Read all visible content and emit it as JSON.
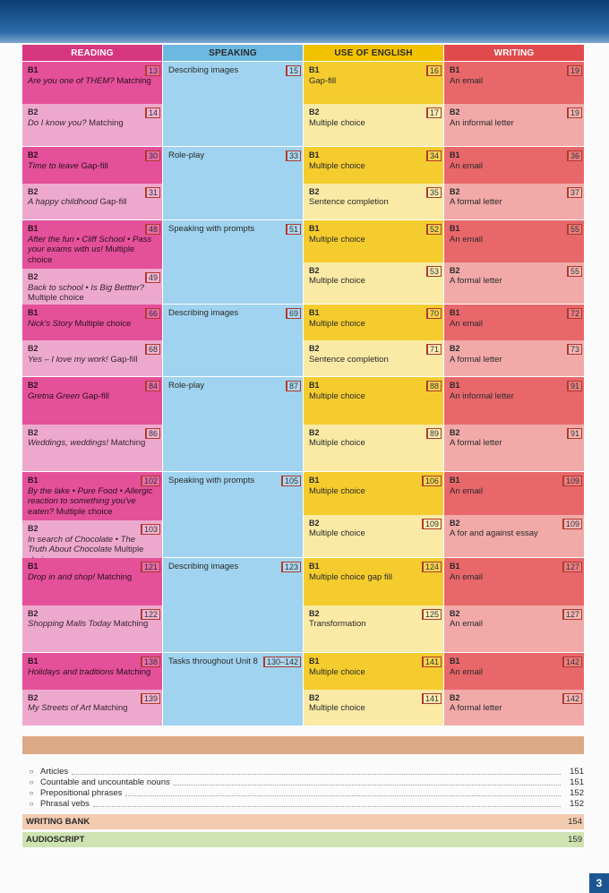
{
  "headers": {
    "reading": "READING",
    "speaking": "SPEAKING",
    "use_of_english": "USE OF ENGLISH",
    "writing": "WRITING"
  },
  "units": [
    {
      "reading": [
        {
          "level": "B1",
          "text": "Are you one of THEM?",
          "suffix": " Matching",
          "page": "13"
        },
        {
          "level": "B2",
          "text": "Do I know you?",
          "suffix": " Matching",
          "page": "14"
        }
      ],
      "speaking": {
        "text": "Describing images",
        "page": "15"
      },
      "use": [
        {
          "level": "B1",
          "text": "Gap-fill",
          "page": "16"
        },
        {
          "level": "B2",
          "text": "Multiple choice",
          "page": "17"
        }
      ],
      "writing": [
        {
          "level": "B1",
          "text": "An email",
          "page": "19"
        },
        {
          "level": "B2",
          "text": "An informal letter",
          "page": "19"
        }
      ]
    },
    {
      "reading": [
        {
          "level": "B2",
          "text": "Time to leave",
          "suffix": " Gap-fill",
          "page": "30"
        },
        {
          "level": "B2",
          "text": "A happy childhood",
          "suffix": " Gap-fill",
          "page": "31"
        }
      ],
      "speaking": {
        "text": "Role-play",
        "page": "33"
      },
      "use": [
        {
          "level": "B1",
          "text": "Multiple choice",
          "page": "34"
        },
        {
          "level": "B2",
          "text": "Sentence completion",
          "page": "35"
        }
      ],
      "writing": [
        {
          "level": "B1",
          "text": "An email",
          "page": "36"
        },
        {
          "level": "B2",
          "text": "A formal letter",
          "page": "37"
        }
      ]
    },
    {
      "reading": [
        {
          "level": "B1",
          "text": "After the fun • Cliff School • Pass your exams with us!",
          "suffix": " Multiple choice",
          "page": "48"
        },
        {
          "level": "B2",
          "text": "Back to school • Is Big Bettter?",
          "suffix": " Multiple choice",
          "page": "49"
        }
      ],
      "speaking": {
        "text": "Speaking with prompts",
        "page": "51"
      },
      "use": [
        {
          "level": "B1",
          "text": "Multiple choice",
          "page": "52"
        },
        {
          "level": "B2",
          "text": "Multiple choice",
          "page": "53"
        }
      ],
      "writing": [
        {
          "level": "B1",
          "text": "An email",
          "page": "55"
        },
        {
          "level": "B2",
          "text": "A formal letter",
          "page": "55"
        }
      ]
    },
    {
      "reading": [
        {
          "level": "B1",
          "text": "Nick's Story",
          "suffix": " Multiple choice",
          "page": "66"
        },
        {
          "level": "B2",
          "text": "Yes – I love my work!",
          "suffix": " Gap-fill",
          "page": "68"
        }
      ],
      "speaking": {
        "text": "Describing images",
        "page": "69"
      },
      "use": [
        {
          "level": "B1",
          "text": "Multiple choice",
          "page": "70"
        },
        {
          "level": "B2",
          "text": "Sentence completion",
          "page": "71"
        }
      ],
      "writing": [
        {
          "level": "B1",
          "text": "An email",
          "page": "72"
        },
        {
          "level": "B2",
          "text": "A formal letter",
          "page": "73"
        }
      ]
    },
    {
      "reading": [
        {
          "level": "B2",
          "text": "Gretna Green",
          "suffix": " Gap-fill",
          "page": "84"
        },
        {
          "level": "B2",
          "text": "Weddings, weddings!",
          "suffix": " Matching",
          "page": "86"
        }
      ],
      "speaking": {
        "text": "Role-play",
        "page": "87"
      },
      "use": [
        {
          "level": "B1",
          "text": "Multiple choice",
          "page": "88"
        },
        {
          "level": "B2",
          "text": "Multiple choice",
          "page": "89"
        }
      ],
      "writing": [
        {
          "level": "B1",
          "text": "An informal letter",
          "page": "91"
        },
        {
          "level": "B2",
          "text": "A formal letter",
          "page": "91"
        }
      ]
    },
    {
      "reading": [
        {
          "level": "B1",
          "text": "By the lake • Pure Food • Allergic reaction to something you've eaten?",
          "suffix": " Multiple choice",
          "page": "102"
        },
        {
          "level": "B2",
          "text": "In search of Chocolate • The Truth About Chocolate",
          "suffix": " Multiple choice",
          "page": "103"
        }
      ],
      "speaking": {
        "text": "Speaking with prompts",
        "page": "105"
      },
      "use": [
        {
          "level": "B1",
          "text": "Multiple choice",
          "page": "106"
        },
        {
          "level": "B2",
          "text": "Multiple choice",
          "page": "109"
        }
      ],
      "writing": [
        {
          "level": "B1",
          "text": "An email",
          "page": "109"
        },
        {
          "level": "B2",
          "text": "A for and against essay",
          "page": "109"
        }
      ]
    },
    {
      "reading": [
        {
          "level": "B1",
          "text": "Drop in and shop!",
          "suffix": " Matching",
          "page": "121"
        },
        {
          "level": "B2",
          "text": "Shopping Malls Today",
          "suffix": " Matching",
          "page": "122"
        }
      ],
      "speaking": {
        "text": "Describing images",
        "page": "123"
      },
      "use": [
        {
          "level": "B1",
          "text": "Multiple choice gap fill",
          "page": "124"
        },
        {
          "level": "B2",
          "text": "Transformation",
          "page": "125"
        }
      ],
      "writing": [
        {
          "level": "B1",
          "text": "An email",
          "page": "127"
        },
        {
          "level": "B2",
          "text": "An email",
          "page": "127"
        }
      ]
    },
    {
      "reading": [
        {
          "level": "B1",
          "text": "Holidays and traditions",
          "suffix": " Matching",
          "page": "138"
        },
        {
          "level": "B2",
          "text": "My Streets of Art",
          "suffix": " Matching",
          "page": "139"
        }
      ],
      "speaking": {
        "text": "Tasks throughout Unit 8",
        "page": "130–142"
      },
      "use": [
        {
          "level": "B1",
          "text": "Multiple choice",
          "page": "141"
        },
        {
          "level": "B2",
          "text": "Multiple choice",
          "page": "141"
        }
      ],
      "writing": [
        {
          "level": "B1",
          "text": "An email",
          "page": "142"
        },
        {
          "level": "B2",
          "text": "A formal letter",
          "page": "142"
        }
      ]
    }
  ],
  "grammar": [
    {
      "label": "Articles",
      "page": "151"
    },
    {
      "label": "Countable and uncountable nouns",
      "page": "151"
    },
    {
      "label": "Prepositional phrases",
      "page": "152"
    },
    {
      "label": "Phrasal vebs",
      "page": "152"
    }
  ],
  "writing_bank": {
    "label": "WRITING BANK",
    "page": "154"
  },
  "audioscript": {
    "label": "AUDIOSCRIPT",
    "page": "159"
  },
  "page_number": "3",
  "colors": {
    "reading": "#d6367f",
    "speaking": "#6cb8e0",
    "use_of_english": "#f2c200",
    "writing": "#e14a4d"
  }
}
